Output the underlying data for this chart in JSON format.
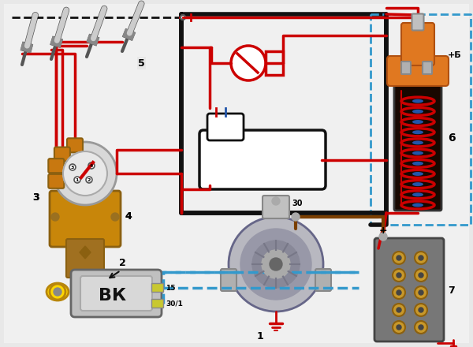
{
  "fig_w": 6.0,
  "fig_h": 4.4,
  "dpi": 100,
  "bg": "#e8e8e8",
  "colors": {
    "red": "#cc0000",
    "black": "#111111",
    "brown": "#7B3F00",
    "orange": "#E07820",
    "dark_orange": "#B05010",
    "gold": "#C8860A",
    "blue_dash": "#3399cc",
    "gray": "#888888",
    "light_gray": "#cccccc",
    "dark_gray": "#555555",
    "white": "#ffffff",
    "yellow": "#FFD700",
    "coil_dark": "#180800",
    "blue": "#2255aa",
    "steel": "#9898a8",
    "medium_gray": "#aaaaaa"
  }
}
